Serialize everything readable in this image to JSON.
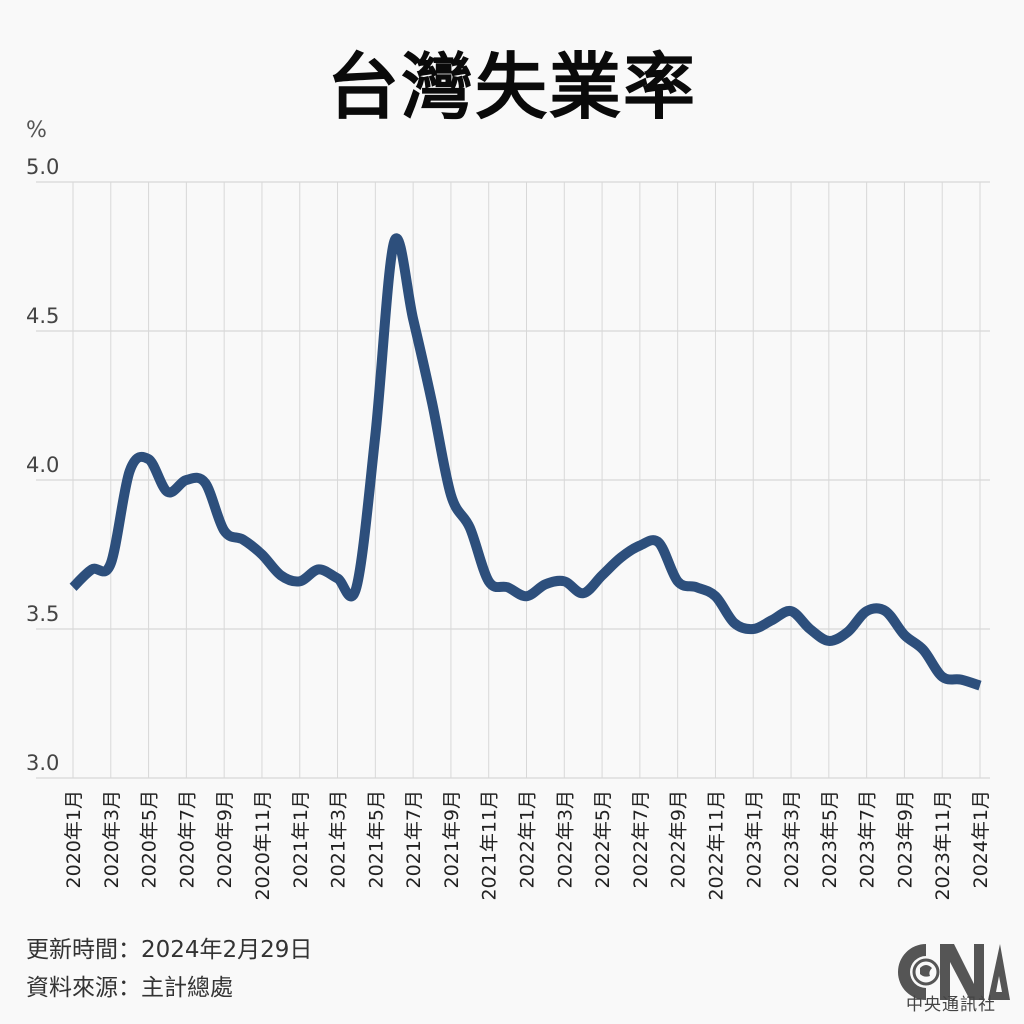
{
  "header": {
    "title": "台灣失業率"
  },
  "axis": {
    "unit": "%",
    "y_ticks": [
      "5.0",
      "4.5",
      "4.0",
      "3.5",
      "3.0"
    ]
  },
  "footer": {
    "updated": "更新時間：2024年2月29日",
    "source": "資料來源：主計總處"
  },
  "logo": {
    "mark": "CNA",
    "name": "中央通訊社"
  },
  "colors": {
    "line": "#2d4f7c",
    "grid": "#d8d8d8",
    "background": "#f9f9f9"
  },
  "chart_data": {
    "type": "line",
    "title": "台灣失業率",
    "xlabel": "",
    "ylabel": "%",
    "ylim": [
      3.0,
      5.0
    ],
    "y_ticks": [
      3.0,
      3.5,
      4.0,
      4.5,
      5.0
    ],
    "grid": true,
    "legend": null,
    "x_tick_labels": [
      "2020年1月",
      "2020年3月",
      "2020年5月",
      "2020年7月",
      "2020年9月",
      "2020年11月",
      "2021年1月",
      "2021年3月",
      "2021年5月",
      "2021年7月",
      "2021年9月",
      "2021年11月",
      "2022年1月",
      "2022年3月",
      "2022年5月",
      "2022年7月",
      "2022年9月",
      "2022年11月",
      "2023年1月",
      "2023年3月",
      "2023年5月",
      "2023年7月",
      "2023年9月",
      "2023年11月",
      "2024年1月"
    ],
    "x": [
      "2020年1月",
      "2020年2月",
      "2020年3月",
      "2020年4月",
      "2020年5月",
      "2020年6月",
      "2020年7月",
      "2020年8月",
      "2020年9月",
      "2020年10月",
      "2020年11月",
      "2020年12月",
      "2021年1月",
      "2021年2月",
      "2021年3月",
      "2021年4月",
      "2021年5月",
      "2021年6月",
      "2021年7月",
      "2021年8月",
      "2021年9月",
      "2021年10月",
      "2021年11月",
      "2021年12月",
      "2022年1月",
      "2022年2月",
      "2022年3月",
      "2022年4月",
      "2022年5月",
      "2022年6月",
      "2022年7月",
      "2022年8月",
      "2022年9月",
      "2022年10月",
      "2022年11月",
      "2022年12月",
      "2023年1月",
      "2023年2月",
      "2023年3月",
      "2023年4月",
      "2023年5月",
      "2023年6月",
      "2023年7月",
      "2023年8月",
      "2023年9月",
      "2023年10月",
      "2023年11月",
      "2023年12月",
      "2024年1月"
    ],
    "series": [
      {
        "name": "失業率",
        "values": [
          3.64,
          3.7,
          3.72,
          4.03,
          4.07,
          3.96,
          4.0,
          3.99,
          3.83,
          3.8,
          3.75,
          3.68,
          3.66,
          3.7,
          3.67,
          3.64,
          4.15,
          4.8,
          4.54,
          4.26,
          3.95,
          3.84,
          3.66,
          3.64,
          3.61,
          3.65,
          3.66,
          3.62,
          3.68,
          3.74,
          3.78,
          3.79,
          3.66,
          3.64,
          3.61,
          3.52,
          3.5,
          3.53,
          3.56,
          3.5,
          3.46,
          3.49,
          3.56,
          3.56,
          3.48,
          3.43,
          3.34,
          3.33,
          3.31
        ]
      }
    ]
  }
}
